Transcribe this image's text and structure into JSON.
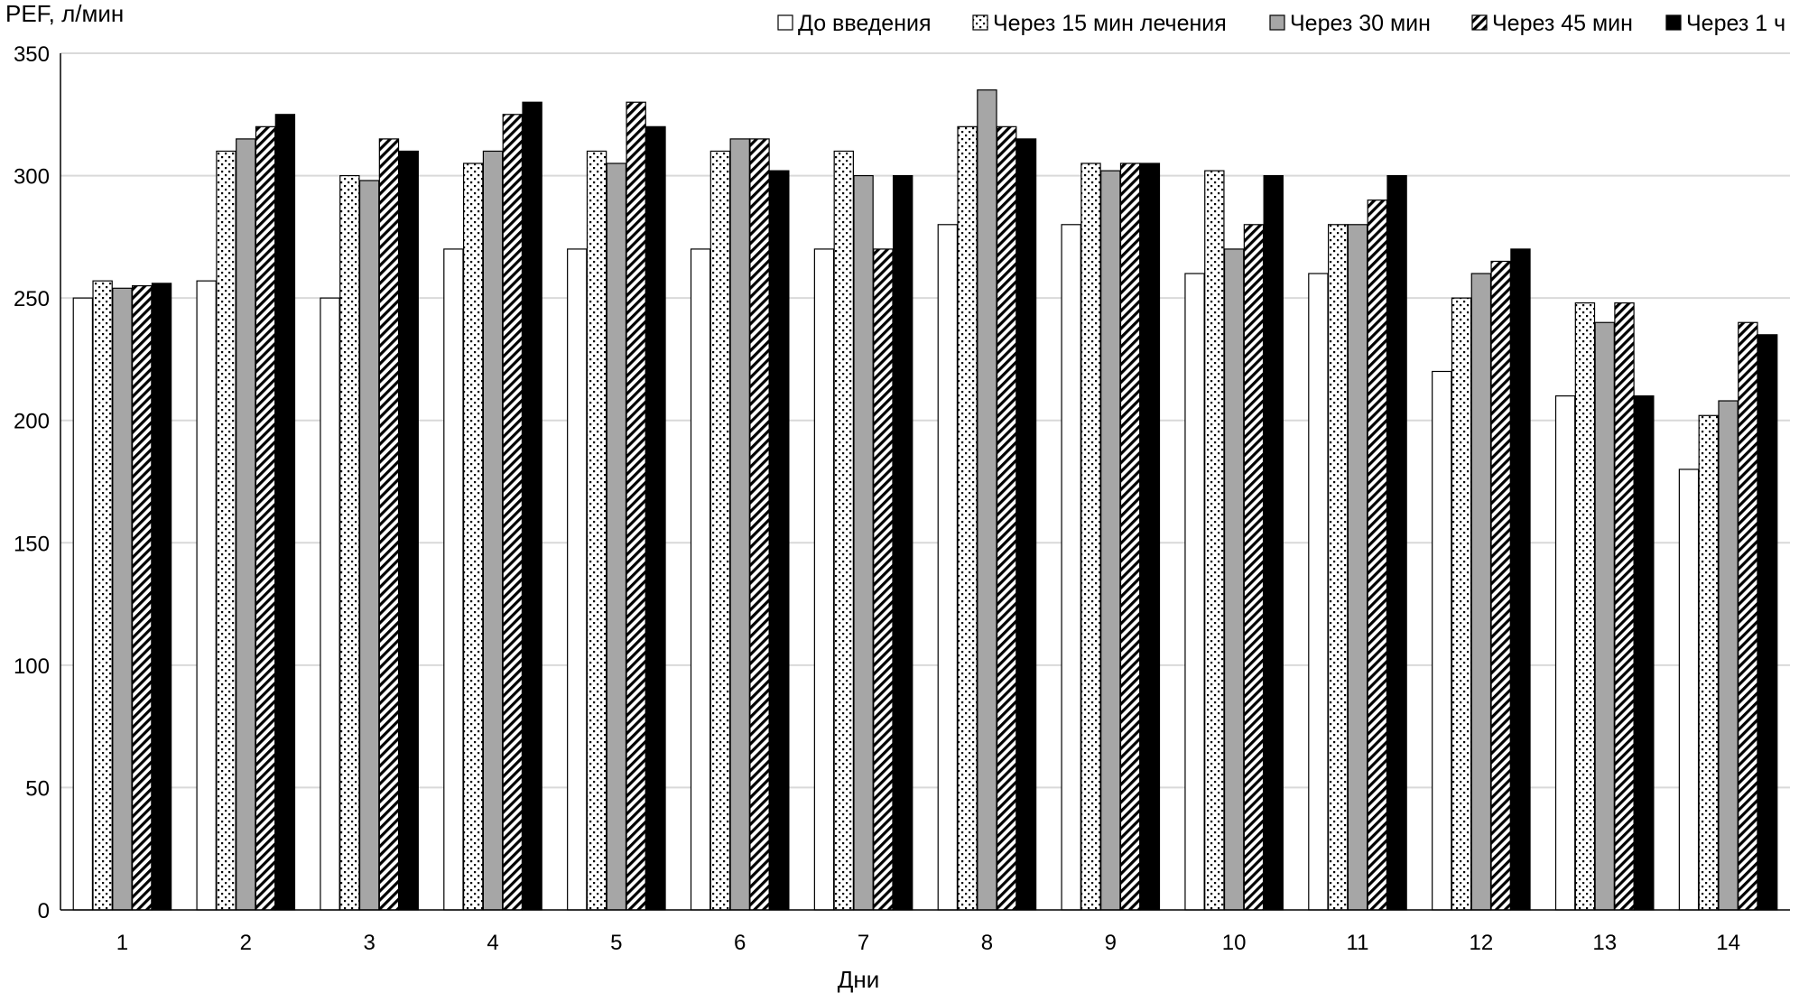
{
  "chart_data": {
    "type": "bar",
    "ylabel": "PEF, л/мин",
    "xlabel": "Дни",
    "ylim": [
      0,
      350
    ],
    "yticks": [
      0,
      50,
      100,
      150,
      200,
      250,
      300,
      350
    ],
    "grid": true,
    "legend_position": "top",
    "categories": [
      "1",
      "2",
      "3",
      "4",
      "5",
      "6",
      "7",
      "8",
      "9",
      "10",
      "11",
      "12",
      "13",
      "14"
    ],
    "series": [
      {
        "name": "До введения",
        "pattern": "white",
        "values": [
          250,
          257,
          250,
          270,
          270,
          270,
          270,
          280,
          280,
          260,
          260,
          220,
          210,
          180
        ]
      },
      {
        "name": "Через 15 мин лечения",
        "pattern": "dotted",
        "values": [
          257,
          310,
          300,
          305,
          310,
          310,
          310,
          320,
          305,
          302,
          280,
          250,
          248,
          202
        ]
      },
      {
        "name": "Через 30 мин",
        "pattern": "gray",
        "values": [
          254,
          315,
          298,
          310,
          305,
          315,
          300,
          335,
          302,
          270,
          280,
          260,
          240,
          208
        ]
      },
      {
        "name": "Через 45 мин",
        "pattern": "diagonal",
        "values": [
          255,
          320,
          315,
          325,
          330,
          315,
          270,
          320,
          305,
          280,
          290,
          265,
          248,
          240
        ]
      },
      {
        "name": "Через 1 ч",
        "pattern": "black",
        "values": [
          256,
          325,
          310,
          330,
          320,
          302,
          300,
          315,
          305,
          300,
          300,
          270,
          210,
          235
        ]
      }
    ]
  }
}
